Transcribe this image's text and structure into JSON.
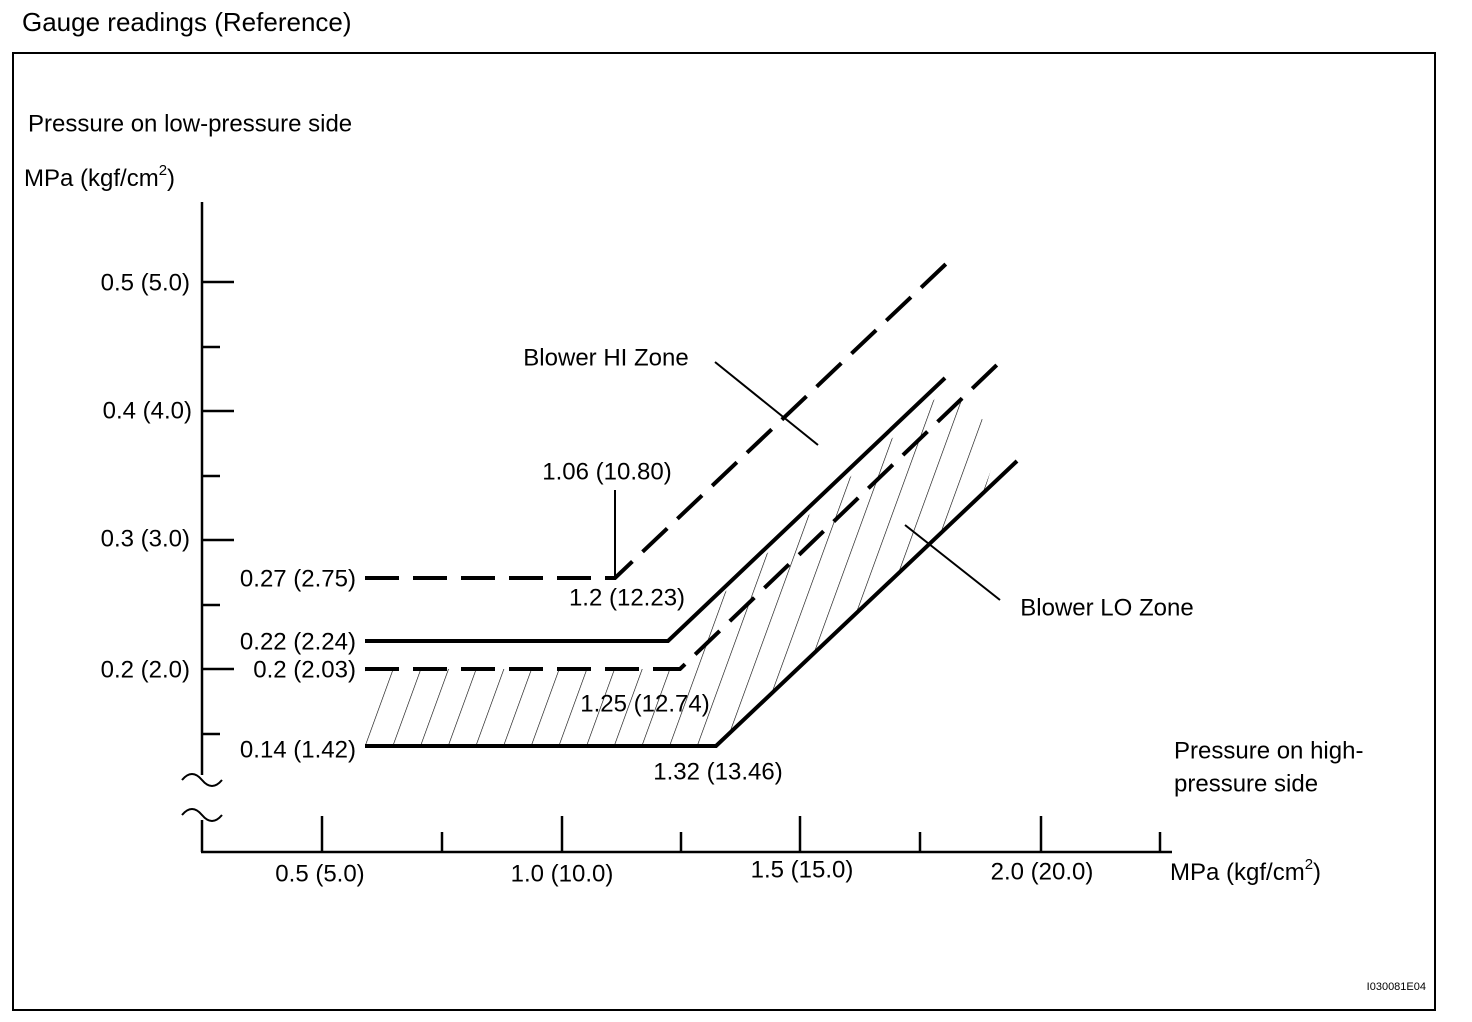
{
  "title": "Gauge readings (Reference)",
  "y_axis": {
    "title": "Pressure on low-pressure side",
    "unit_main": "MPa (kgf/cm",
    "unit_sup": "2",
    "unit_close": ")",
    "ticks": [
      "0.5 (5.0)",
      "0.4 (4.0)",
      "0.3 (3.0)",
      "0.2 (2.0)"
    ]
  },
  "x_axis": {
    "title_line1": "Pressure on high-",
    "title_line2": "pressure side",
    "unit_main": "MPa (kgf/cm",
    "unit_sup": "2",
    "unit_close": ")",
    "ticks": [
      "0.5 (5.0)",
      "1.0 (10.0)",
      "1.5 (15.0)",
      "2.0 (20.0)"
    ]
  },
  "annotations": {
    "hi_low": "0.27 (2.75)",
    "hi_knee": "1.06 (10.80)",
    "lo_upper_low": "0.22 (2.24)",
    "lo_upper_knee": "1.2 (12.23)",
    "lo_mid_low": "0.2 (2.03)",
    "lo_mid_knee": "1.25 (12.74)",
    "lo_lower_low": "0.14 (1.42)",
    "lo_lower_knee": "1.32 (13.46)"
  },
  "zones": {
    "hi": "Blower HI Zone",
    "lo": "Blower LO Zone"
  },
  "figure_code": "I030081E04"
}
